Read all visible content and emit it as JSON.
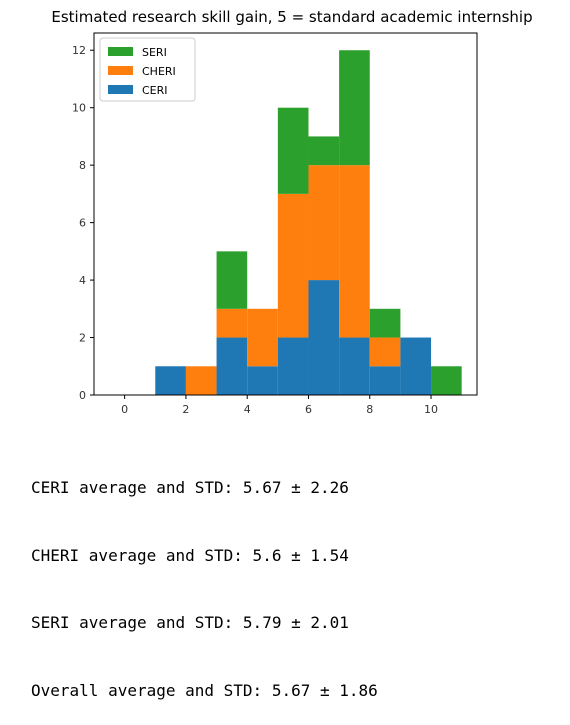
{
  "chart_data": {
    "type": "bar",
    "subtype": "stacked-histogram",
    "title": "Estimated research skill gain, 5 = standard academic internship",
    "xlabel": "",
    "ylabel": "",
    "xlim": [
      -1,
      11.5
    ],
    "ylim": [
      0,
      12.6
    ],
    "xticks": [
      0,
      2,
      4,
      6,
      8,
      10
    ],
    "yticks": [
      0,
      2,
      4,
      6,
      8,
      10,
      12
    ],
    "grid": false,
    "legend_position": "top-left",
    "bins": [
      [
        1,
        2
      ],
      [
        2,
        3
      ],
      [
        3,
        4
      ],
      [
        4,
        5
      ],
      [
        5,
        6
      ],
      [
        6,
        7
      ],
      [
        7,
        8
      ],
      [
        8,
        9
      ],
      [
        9,
        10
      ],
      [
        10,
        11
      ]
    ],
    "series": [
      {
        "name": "CERI",
        "color": "#1f77b4",
        "values": [
          1,
          0,
          2,
          1,
          2,
          4,
          2,
          1,
          2,
          0
        ]
      },
      {
        "name": "CHERI",
        "color": "#ff7f0e",
        "values": [
          0,
          1,
          1,
          2,
          5,
          4,
          6,
          1,
          0,
          0
        ]
      },
      {
        "name": "SERI",
        "color": "#2ca02c",
        "values": [
          0,
          0,
          2,
          0,
          3,
          1,
          4,
          1,
          0,
          1
        ]
      }
    ],
    "legend_order": [
      "SERI",
      "CHERI",
      "CERI"
    ]
  },
  "output": {
    "lines": [
      "CERI average and STD: 5.67 ± 2.26",
      "CHERI average and STD: 5.6 ± 1.54",
      "SERI average and STD: 5.79 ± 2.01",
      "Overall average and STD: 5.67 ± 1.86"
    ]
  }
}
